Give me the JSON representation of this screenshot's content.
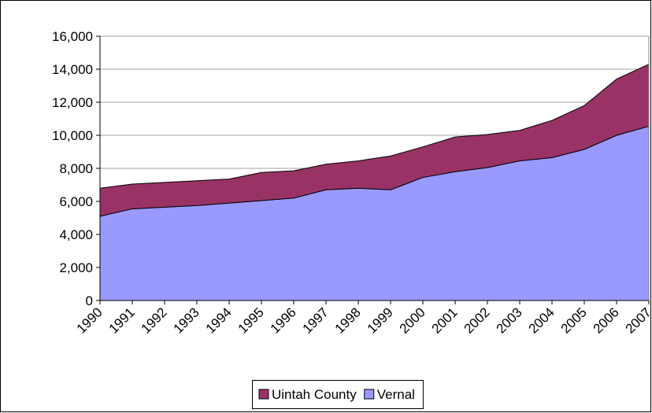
{
  "chart_data": {
    "type": "stacked-area",
    "categories": [
      "1990",
      "1991",
      "1992",
      "1993",
      "1994",
      "1995",
      "1996",
      "1997",
      "1998",
      "1999",
      "2000",
      "2001",
      "2002",
      "2003",
      "2004",
      "2005",
      "2006",
      "2007"
    ],
    "series": [
      {
        "name": "Uintah County",
        "color": "#993366",
        "values": [
          1700,
          1500,
          1500,
          1500,
          1450,
          1700,
          1650,
          1550,
          1650,
          2050,
          1850,
          2100,
          2000,
          1850,
          2250,
          2650,
          3400,
          3750
        ]
      },
      {
        "name": "Vernal",
        "color": "#9999ff",
        "values": [
          5100,
          5550,
          5650,
          5750,
          5900,
          6050,
          6200,
          6700,
          6800,
          6700,
          7450,
          7800,
          8050,
          8450,
          8650,
          9150,
          10000,
          10550
        ]
      }
    ],
    "ylim": [
      0,
      16000
    ],
    "yticks": [
      0,
      {
        "value": 2000,
        "label": "2,000"
      },
      {
        "value": 4000,
        "label": "4,000"
      },
      {
        "value": 6000,
        "label": "6,000"
      },
      {
        "value": 8000,
        "label": "8,000"
      },
      {
        "value": 10000,
        "label": "10,000"
      },
      {
        "value": 12000,
        "label": "12,000"
      },
      {
        "value": 14000,
        "label": "14,000"
      },
      {
        "value": 16000,
        "label": "16,000"
      }
    ],
    "grid": true,
    "legend": "bottom"
  }
}
